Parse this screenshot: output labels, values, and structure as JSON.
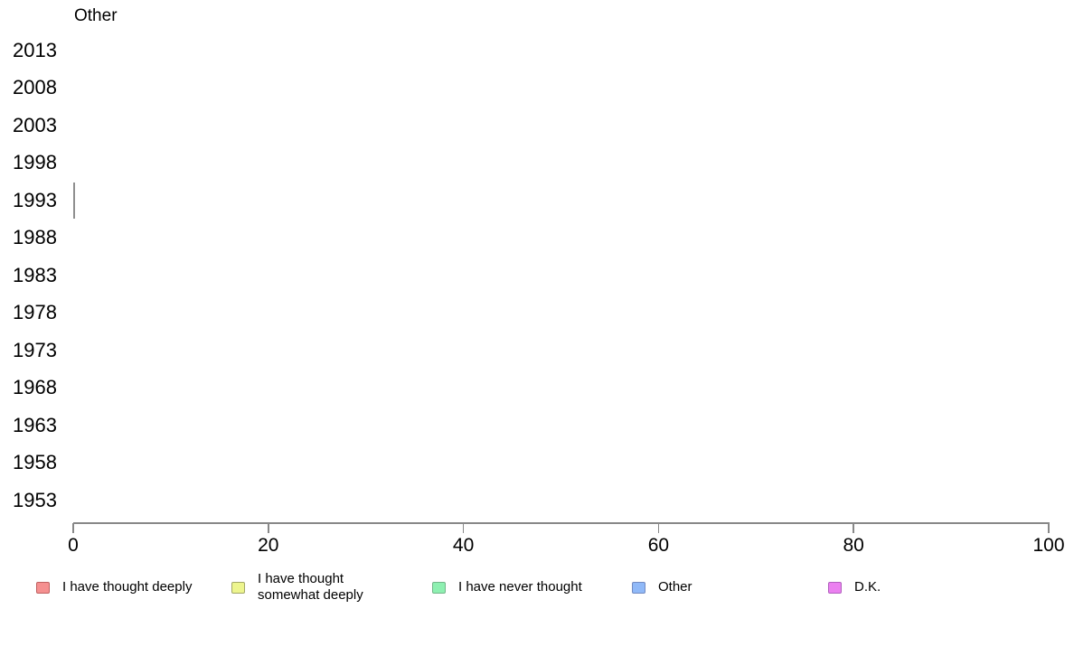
{
  "chart_data": {
    "type": "bar",
    "orientation": "horizontal",
    "title": "Other",
    "categories": [
      "2013",
      "2008",
      "2003",
      "1998",
      "1993",
      "1988",
      "1983",
      "1978",
      "1973",
      "1968",
      "1963",
      "1958",
      "1953"
    ],
    "series": [
      {
        "name": "Other",
        "values": [
          null,
          null,
          null,
          null,
          0,
          null,
          null,
          null,
          null,
          null,
          null,
          null,
          null
        ]
      }
    ],
    "note": "Plot area is empty; only a zero-width bar outline is visible at the 1993 row at x=0",
    "near_zero_bar": {
      "category": "1993",
      "value": 0
    },
    "xlabel": "",
    "ylabel": "",
    "xlim": [
      0,
      100
    ],
    "xticks": [
      0,
      20,
      40,
      60,
      80,
      100
    ],
    "xtick_labels": [
      "0",
      "20",
      "40",
      "60",
      "80",
      "100"
    ],
    "grid": false,
    "legend_position": "bottom",
    "legend": [
      {
        "label": "I have thought deeply",
        "fill": "#f59090",
        "border": "#bf6060",
        "wrap": false
      },
      {
        "label": "I have thought somewhat deeply",
        "fill": "#edf58e",
        "border": "#a2a766",
        "wrap": true
      },
      {
        "label": "I have never thought",
        "fill": "#8ef0b1",
        "border": "#72b689",
        "wrap": false
      },
      {
        "label": "Other",
        "fill": "#90b9f8",
        "border": "#7189c1",
        "wrap": false
      },
      {
        "label": "D.K.",
        "fill": "#eb80f0",
        "border": "#b160bd",
        "wrap": false
      }
    ],
    "colors": {
      "axis": "#888888",
      "bar_outline": "#8f8f8f",
      "text": "#000000",
      "background": "#ffffff"
    }
  }
}
